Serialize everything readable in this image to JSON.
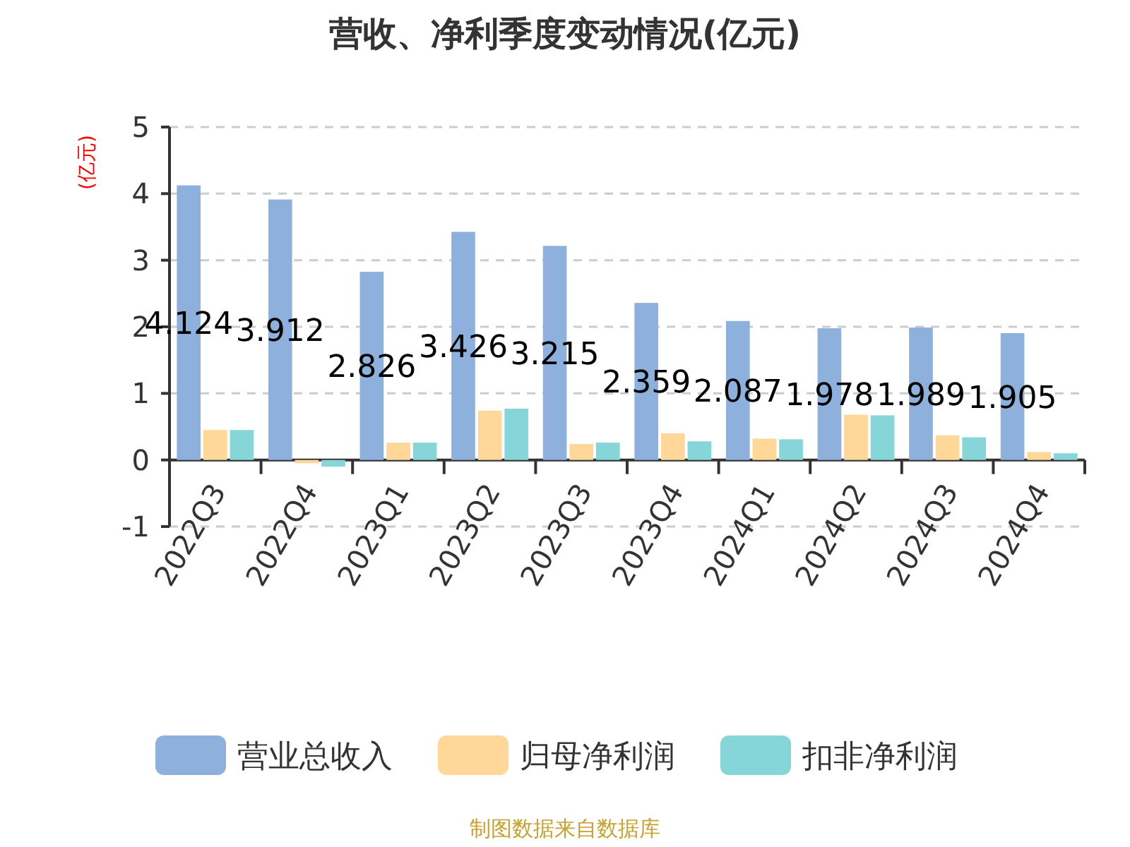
{
  "chart_data": {
    "type": "bar",
    "title": "营收、净利季度变动情况(亿元)",
    "ylabel": "(亿元)",
    "categories": [
      "2022Q3",
      "2022Q4",
      "2023Q1",
      "2023Q2",
      "2023Q3",
      "2023Q4",
      "2024Q1",
      "2024Q2",
      "2024Q3",
      "2024Q4"
    ],
    "series": [
      {
        "name": "营业总收入",
        "color": "#8eb0dd",
        "values": [
          4.124,
          3.912,
          2.826,
          3.426,
          3.215,
          2.359,
          2.087,
          1.978,
          1.989,
          1.905
        ],
        "value_labels": [
          "4.124",
          "3.912",
          "2.826",
          "3.426",
          "3.215",
          "2.359",
          "2.087",
          "1.978",
          "1.989",
          "1.905"
        ]
      },
      {
        "name": "归母净利润",
        "color": "#ffd899",
        "values": [
          0.45,
          -0.05,
          0.26,
          0.74,
          0.24,
          0.4,
          0.32,
          0.68,
          0.37,
          0.12
        ]
      },
      {
        "name": "扣非净利润",
        "color": "#86d5d8",
        "values": [
          0.45,
          -0.1,
          0.26,
          0.77,
          0.26,
          0.28,
          0.31,
          0.67,
          0.34,
          0.1
        ]
      }
    ],
    "ylim": [
      -1,
      5
    ],
    "yticks": [
      -1,
      0,
      1,
      2,
      3,
      4,
      5
    ],
    "grid": "y",
    "legend": "bottom",
    "annotations": [
      "制图数据来自数据库"
    ]
  }
}
